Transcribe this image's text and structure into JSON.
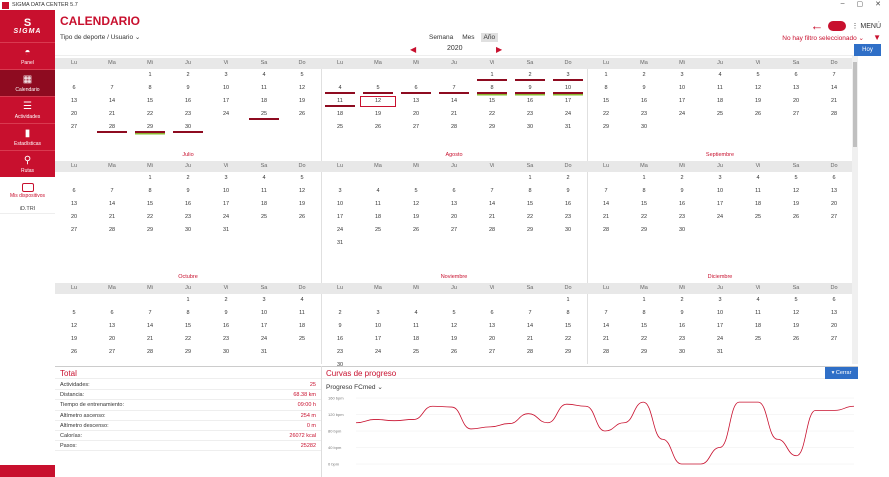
{
  "window": {
    "title": "SIGMA DATA CENTER 5.7",
    "minimize": "–",
    "maximize": "▢",
    "close": "✕"
  },
  "sidebar": {
    "logo_symbol": "S",
    "logo_text": "SIGMA",
    "items": [
      {
        "label": "Panel",
        "icon": "gauge-icon",
        "glyph": "◓"
      },
      {
        "label": "Calendario",
        "icon": "calendar-icon",
        "glyph": "▦"
      },
      {
        "label": "Actividades",
        "icon": "list-icon",
        "glyph": "☰"
      },
      {
        "label": "Estadísticas",
        "icon": "bar-chart-icon",
        "glyph": "▮"
      },
      {
        "label": "Rutas",
        "icon": "route-icon",
        "glyph": "⚲"
      }
    ],
    "device_label": "Mis dispositivos",
    "device_name": "iD.TRI"
  },
  "header": {
    "title": "CALENDARIO",
    "filter": "Tipo de deporte / Usuario",
    "filter_caret": "⌄",
    "tabs": [
      "Semana",
      "Mes",
      "Año"
    ],
    "active_tab": "Año",
    "menu": "⋮ MENÚ",
    "no_filter": "No hay filtro seleccionado",
    "no_filter_caret": "⌄",
    "today": "Hoy"
  },
  "year": "2020",
  "dow": [
    "Lu",
    "Ma",
    "Mi",
    "Ju",
    "Vi",
    "Sa",
    "Do"
  ],
  "months": [
    {
      "name": "",
      "weeks": [
        [
          "",
          "",
          "1",
          "2",
          "3",
          "4",
          "5"
        ],
        [
          "6",
          "7",
          "8",
          "9",
          "10",
          "11",
          "12"
        ],
        [
          "13",
          "14",
          "15",
          "16",
          "17",
          "18",
          "19"
        ],
        [
          "20",
          "21",
          "22",
          "23",
          "24",
          "25",
          "26"
        ],
        [
          "27",
          "28",
          "29",
          "30",
          "",
          "",
          ""
        ]
      ],
      "marks": {
        "25": "r",
        "28": "r",
        "29": "g",
        "30": "r"
      }
    },
    {
      "name": "",
      "weeks": [
        [
          "",
          "",
          "",
          "",
          "1",
          "2",
          "3"
        ],
        [
          "4",
          "5",
          "6",
          "7",
          "8",
          "9",
          "10"
        ],
        [
          "11",
          "12",
          "13",
          "14",
          "15",
          "16",
          "17"
        ],
        [
          "18",
          "19",
          "20",
          "21",
          "22",
          "23",
          "24"
        ],
        [
          "25",
          "26",
          "27",
          "28",
          "29",
          "30",
          "31"
        ]
      ],
      "marks": {
        "1": "r",
        "2": "r",
        "3": "r",
        "4": "r",
        "5": "r",
        "6": "r",
        "7": "r",
        "8": "g",
        "9": "g",
        "10": "g",
        "11": "r"
      },
      "today": "12"
    },
    {
      "name": "",
      "weeks": [
        [
          "1",
          "2",
          "3",
          "4",
          "5",
          "6",
          "7"
        ],
        [
          "8",
          "9",
          "10",
          "11",
          "12",
          "13",
          "14"
        ],
        [
          "15",
          "16",
          "17",
          "18",
          "19",
          "20",
          "21"
        ],
        [
          "22",
          "23",
          "24",
          "25",
          "26",
          "27",
          "28"
        ],
        [
          "29",
          "30",
          "",
          "",
          "",
          "",
          ""
        ]
      ],
      "marks": {}
    },
    {
      "name": "Julio",
      "weeks": [
        [
          "",
          "",
          "1",
          "2",
          "3",
          "4",
          "5"
        ],
        [
          "6",
          "7",
          "8",
          "9",
          "10",
          "11",
          "12"
        ],
        [
          "13",
          "14",
          "15",
          "16",
          "17",
          "18",
          "19"
        ],
        [
          "20",
          "21",
          "22",
          "23",
          "24",
          "25",
          "26"
        ],
        [
          "27",
          "28",
          "29",
          "30",
          "31",
          "",
          ""
        ]
      ],
      "marks": {}
    },
    {
      "name": "Agosto",
      "weeks": [
        [
          "",
          "",
          "",
          "",
          "",
          "1",
          "2"
        ],
        [
          "3",
          "4",
          "5",
          "6",
          "7",
          "8",
          "9"
        ],
        [
          "10",
          "11",
          "12",
          "13",
          "14",
          "15",
          "16"
        ],
        [
          "17",
          "18",
          "19",
          "20",
          "21",
          "22",
          "23"
        ],
        [
          "24",
          "25",
          "26",
          "27",
          "28",
          "29",
          "30"
        ],
        [
          "31",
          "",
          "",
          "",
          "",
          "",
          ""
        ]
      ],
      "marks": {}
    },
    {
      "name": "Septiembre",
      "weeks": [
        [
          "",
          "1",
          "2",
          "3",
          "4",
          "5",
          "6"
        ],
        [
          "7",
          "8",
          "9",
          "10",
          "11",
          "12",
          "13"
        ],
        [
          "14",
          "15",
          "16",
          "17",
          "18",
          "19",
          "20"
        ],
        [
          "21",
          "22",
          "23",
          "24",
          "25",
          "26",
          "27"
        ],
        [
          "28",
          "29",
          "30",
          "",
          "",
          "",
          ""
        ]
      ],
      "marks": {}
    },
    {
      "name": "Octubre",
      "weeks": [
        [
          "",
          "",
          "",
          "1",
          "2",
          "3",
          "4"
        ],
        [
          "5",
          "6",
          "7",
          "8",
          "9",
          "10",
          "11"
        ],
        [
          "12",
          "13",
          "14",
          "15",
          "16",
          "17",
          "18"
        ],
        [
          "19",
          "20",
          "21",
          "22",
          "23",
          "24",
          "25"
        ],
        [
          "26",
          "27",
          "28",
          "29",
          "30",
          "31",
          ""
        ]
      ],
      "marks": {}
    },
    {
      "name": "Noviembre",
      "weeks": [
        [
          "",
          "",
          "",
          "",
          "",
          "",
          "1"
        ],
        [
          "2",
          "3",
          "4",
          "5",
          "6",
          "7",
          "8"
        ],
        [
          "9",
          "10",
          "11",
          "12",
          "13",
          "14",
          "15"
        ],
        [
          "16",
          "17",
          "18",
          "19",
          "20",
          "21",
          "22"
        ],
        [
          "23",
          "24",
          "25",
          "26",
          "27",
          "28",
          "29"
        ],
        [
          "30",
          "",
          "",
          "",
          "",
          "",
          ""
        ]
      ],
      "marks": {}
    },
    {
      "name": "Diciembre",
      "weeks": [
        [
          "",
          "1",
          "2",
          "3",
          "4",
          "5",
          "6"
        ],
        [
          "7",
          "8",
          "9",
          "10",
          "11",
          "12",
          "13"
        ],
        [
          "14",
          "15",
          "16",
          "17",
          "18",
          "19",
          "20"
        ],
        [
          "21",
          "22",
          "23",
          "24",
          "25",
          "26",
          "27"
        ],
        [
          "28",
          "29",
          "30",
          "31",
          "",
          "",
          ""
        ]
      ],
      "marks": {}
    }
  ],
  "totals": {
    "title": "Total",
    "rows": [
      {
        "label": "Actividades:",
        "value": "25"
      },
      {
        "label": "Distancia:",
        "value": "68.38 km"
      },
      {
        "label": "Tiempo de entrenamiento:",
        "value": "09:00 h"
      },
      {
        "label": "Altímetro ascenso:",
        "value": "254 m"
      },
      {
        "label": "Altímetro descenso:",
        "value": "0 m"
      },
      {
        "label": "Calorías:",
        "value": "26072 kcal"
      },
      {
        "label": "Pasos:",
        "value": "25282"
      }
    ]
  },
  "curves": {
    "title": "Curvas de progreso",
    "selector": "Progreso FCmed",
    "selector_caret": "⌄",
    "close": "▾ Cerrar",
    "y_ticks": [
      "160 bpm",
      "120 bpm",
      "80 bpm",
      "40 bpm",
      "0 bpm"
    ],
    "color": "#c8102e"
  },
  "chart_data": {
    "type": "line",
    "ylabel": "",
    "ylim": [
      0,
      160
    ],
    "y_ticks": [
      0,
      40,
      80,
      120,
      160
    ],
    "series": [
      {
        "values": [
          100,
          108,
          105,
          108,
          140,
          138,
          85,
          90,
          98,
          122,
          100,
          145,
          140,
          80,
          100,
          150,
          60,
          0,
          0,
          40,
          150,
          150,
          60,
          20,
          130,
          130,
          140
        ]
      }
    ]
  }
}
